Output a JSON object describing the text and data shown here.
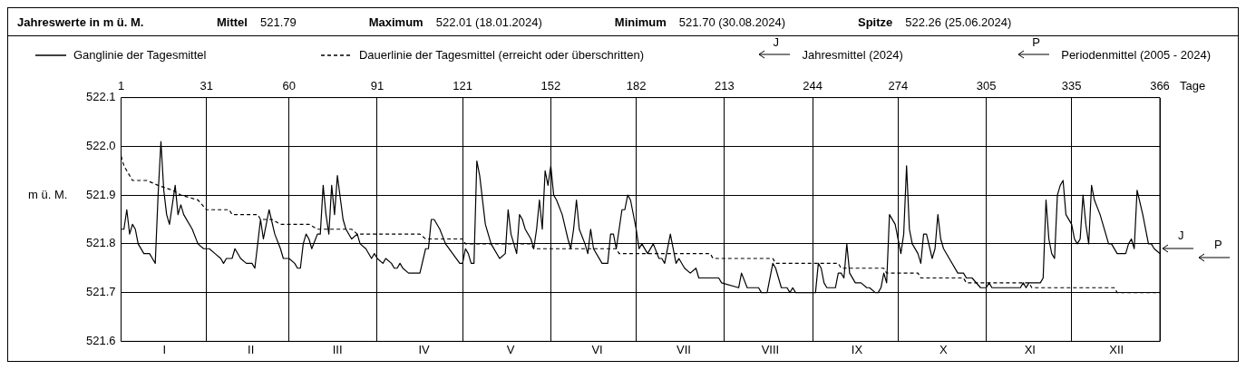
{
  "chart_data": {
    "type": "line",
    "title": "Jahreswerte in m ü. M.",
    "annotations": [
      "Mittel",
      "521.79",
      "Maximum",
      "522.01  (18.01.2024)",
      "Minimum",
      "521.70  (30.08.2024)",
      "Spitze",
      "522.26  (25.06.2024)",
      "J",
      "P",
      "Jahresmittel (2024)",
      "Periodenmittel (2005 - 2024)"
    ],
    "categories": [
      "I",
      "II",
      "III",
      "IV",
      "V",
      "VI",
      "VII",
      "VIII",
      "IX",
      "X",
      "XI",
      "XII"
    ],
    "ylabel": "m ü. M.",
    "x2label": "Tage",
    "series": [
      {
        "name": "Ganglinie der Tagesmittel",
        "color": "#000000",
        "line_style": "solid",
        "axis": "x2",
        "x": [
          1,
          2,
          3,
          4,
          5,
          6,
          7,
          9,
          11,
          12,
          13,
          14,
          15,
          16,
          17,
          18,
          20,
          21,
          22,
          23,
          26,
          28,
          30,
          32,
          34,
          36,
          37,
          38,
          40,
          41,
          43,
          45,
          47,
          48,
          50,
          51,
          53,
          55,
          57,
          58,
          60,
          62,
          63,
          64,
          65,
          66,
          67,
          68,
          70,
          71,
          72,
          73,
          74,
          75,
          76,
          77,
          79,
          80,
          82,
          84,
          85,
          87,
          89,
          90,
          91,
          93,
          94,
          96,
          97,
          98,
          99,
          100,
          102,
          106,
          108,
          109,
          110,
          111,
          113,
          115,
          120,
          121,
          122,
          123,
          124,
          125,
          126,
          127,
          129,
          131,
          134,
          136,
          137,
          138,
          140,
          141,
          142,
          143,
          145,
          146,
          147,
          148,
          149,
          150,
          151,
          152,
          153,
          154,
          156,
          158,
          159,
          160,
          161,
          162,
          164,
          165,
          166,
          167,
          170,
          172,
          173,
          174,
          175,
          177,
          178,
          179,
          180,
          182,
          183,
          184,
          186,
          188,
          190,
          191,
          192,
          194,
          196,
          197,
          199,
          201,
          203,
          204,
          211,
          212,
          218,
          219,
          221,
          225,
          226,
          228,
          230,
          231,
          233,
          235,
          236,
          237,
          238,
          245,
          246,
          247,
          248,
          249,
          252,
          253,
          254,
          255,
          256,
          257,
          259,
          261,
          263,
          264,
          266,
          267,
          268,
          269,
          270,
          271,
          273,
          275,
          276,
          277,
          278,
          279,
          281,
          282,
          283,
          284,
          286,
          287,
          288,
          289,
          290,
          292,
          295,
          297,
          298,
          300,
          303,
          305,
          306,
          307,
          317,
          318,
          319,
          320,
          324,
          325,
          326,
          327,
          328,
          329,
          330,
          331,
          332,
          333,
          335,
          336,
          337,
          338,
          339,
          340,
          341,
          342,
          343,
          345,
          346,
          348,
          349,
          351,
          354,
          355,
          356,
          357,
          358,
          360,
          362,
          363,
          364,
          366
        ],
        "values": [
          521.83,
          521.83,
          521.87,
          521.82,
          521.84,
          521.83,
          521.8,
          521.78,
          521.78,
          521.77,
          521.76,
          521.9,
          522.01,
          521.91,
          521.86,
          521.84,
          521.92,
          521.86,
          521.88,
          521.86,
          521.83,
          521.8,
          521.79,
          521.79,
          521.78,
          521.77,
          521.76,
          521.77,
          521.77,
          521.79,
          521.77,
          521.76,
          521.76,
          521.75,
          521.85,
          521.81,
          521.87,
          521.82,
          521.79,
          521.77,
          521.77,
          521.76,
          521.75,
          521.75,
          521.8,
          521.82,
          521.81,
          521.79,
          521.82,
          521.82,
          521.92,
          521.86,
          521.82,
          521.92,
          521.86,
          521.94,
          521.85,
          521.83,
          521.81,
          521.82,
          521.8,
          521.79,
          521.77,
          521.78,
          521.77,
          521.76,
          521.77,
          521.76,
          521.75,
          521.75,
          521.76,
          521.75,
          521.74,
          521.74,
          521.79,
          521.79,
          521.85,
          521.85,
          521.83,
          521.8,
          521.76,
          521.76,
          521.79,
          521.78,
          521.76,
          521.76,
          521.97,
          521.94,
          521.84,
          521.8,
          521.77,
          521.78,
          521.87,
          521.82,
          521.78,
          521.86,
          521.85,
          521.83,
          521.81,
          521.79,
          521.83,
          521.89,
          521.83,
          521.95,
          521.92,
          521.96,
          521.9,
          521.89,
          521.86,
          521.81,
          521.79,
          521.83,
          521.89,
          521.83,
          521.8,
          521.78,
          521.83,
          521.79,
          521.76,
          521.76,
          521.82,
          521.82,
          521.79,
          521.87,
          521.87,
          521.9,
          521.89,
          521.83,
          521.79,
          521.8,
          521.78,
          521.8,
          521.77,
          521.77,
          521.76,
          521.82,
          521.76,
          521.77,
          521.75,
          521.74,
          521.75,
          521.73,
          521.73,
          521.72,
          521.71,
          521.74,
          521.71,
          521.71,
          521.7,
          521.7,
          521.76,
          521.75,
          521.71,
          521.71,
          521.7,
          521.71,
          521.7,
          521.7,
          521.76,
          521.75,
          521.72,
          521.71,
          521.71,
          521.74,
          521.74,
          521.73,
          521.8,
          521.74,
          521.72,
          521.72,
          521.71,
          521.71,
          521.7,
          521.7,
          521.71,
          521.74,
          521.72,
          521.86,
          521.84,
          521.78,
          521.82,
          521.96,
          521.83,
          521.8,
          521.78,
          521.76,
          521.82,
          521.82,
          521.77,
          521.79,
          521.86,
          521.81,
          521.79,
          521.77,
          521.74,
          521.74,
          521.73,
          521.73,
          521.71,
          521.71,
          521.72,
          521.71,
          521.71,
          521.72,
          521.71,
          521.72,
          521.72,
          521.73,
          521.89,
          521.81,
          521.78,
          521.77,
          521.9,
          521.92,
          521.93,
          521.86,
          521.84,
          521.81,
          521.8,
          521.81,
          521.9,
          521.84,
          521.8,
          521.92,
          521.89,
          521.86,
          521.84,
          521.8,
          521.8,
          521.78,
          521.78,
          521.8,
          521.81,
          521.79,
          521.91,
          521.86,
          521.8,
          521.8,
          521.79,
          521.78
        ]
      },
      {
        "name": "Dauerlinie der Tagesmittel (erreicht oder überschritten)",
        "color": "#000000",
        "line_style": "dashed",
        "axis": "x2",
        "x": [
          1,
          2,
          5,
          10,
          14,
          19,
          22,
          28,
          31,
          39,
          40,
          49,
          50,
          54,
          57,
          67,
          70,
          82,
          84,
          106,
          108,
          121,
          122,
          145,
          146,
          175,
          176,
          208,
          209,
          230,
          231,
          253,
          254,
          269,
          270,
          281,
          282,
          297,
          298,
          320,
          321,
          350,
          351,
          366
        ],
        "values": [
          521.98,
          521.96,
          521.93,
          521.93,
          521.92,
          521.91,
          521.9,
          521.89,
          521.87,
          521.87,
          521.86,
          521.86,
          521.85,
          521.85,
          521.84,
          521.84,
          521.83,
          521.83,
          521.82,
          521.82,
          521.81,
          521.81,
          521.8,
          521.8,
          521.79,
          521.79,
          521.78,
          521.78,
          521.77,
          521.77,
          521.76,
          521.76,
          521.75,
          521.75,
          521.74,
          521.74,
          521.73,
          521.73,
          521.72,
          521.72,
          521.71,
          521.71,
          521.7,
          521.7
        ]
      }
    ],
    "x2lim": [
      1,
      366
    ],
    "x2ticks": [
      1,
      31,
      60,
      91,
      121,
      152,
      182,
      213,
      244,
      274,
      305,
      335,
      366
    ],
    "ylim": [
      521.6,
      522.1
    ],
    "yticks": [
      521.6,
      521.7,
      521.8,
      521.9,
      {
        "value": 522.0,
        "label": "522.0"
      },
      522.1
    ],
    "grid": true,
    "legend": "top",
    "marker": "none"
  }
}
